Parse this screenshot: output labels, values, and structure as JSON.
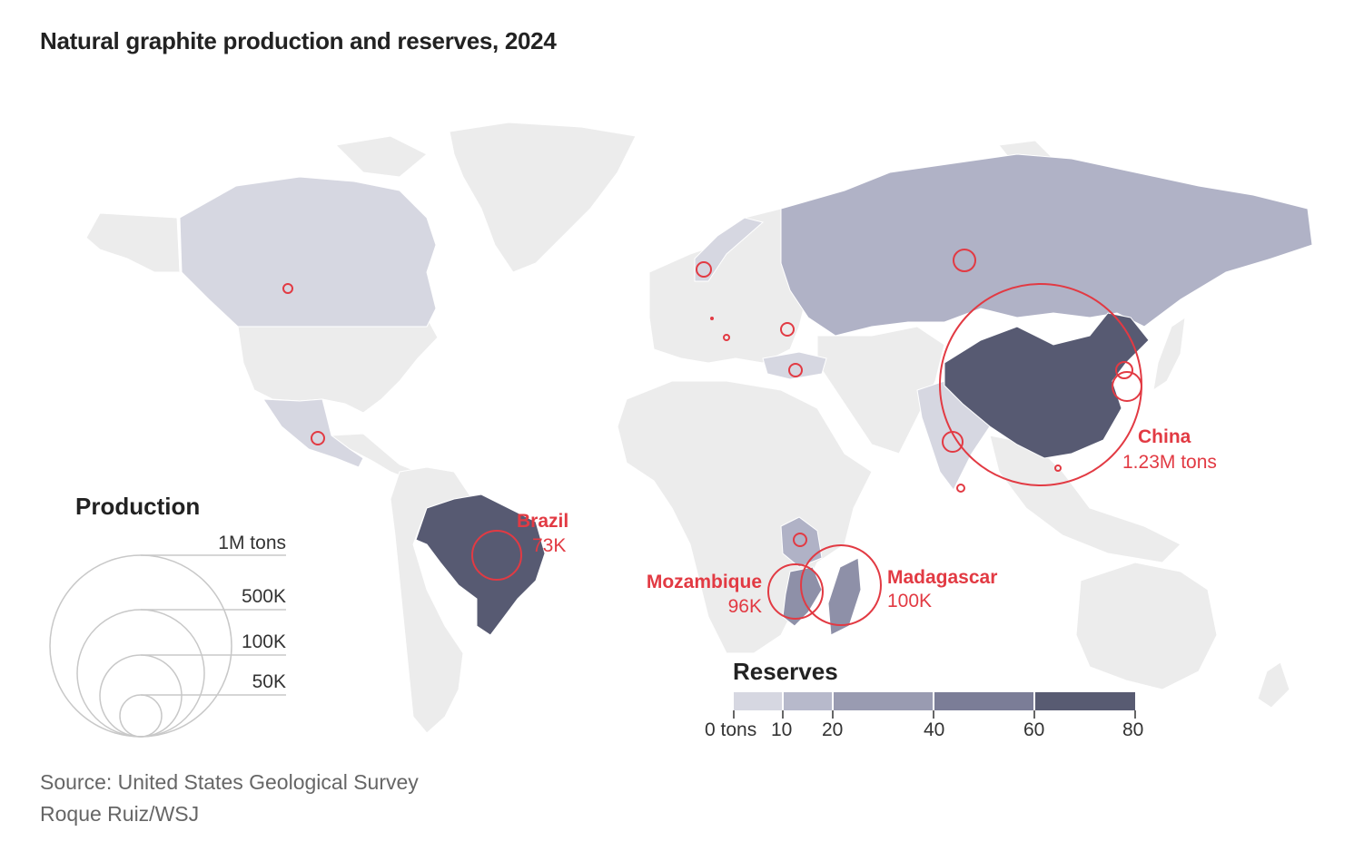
{
  "title": "Natural graphite production and reserves, 2024",
  "colors": {
    "land": "#ececec",
    "reserves_scale": [
      "#d6d7e1",
      "#b7b9cb",
      "#999bb1",
      "#7b7d97",
      "#585b72"
    ],
    "bubble": "#e23a43",
    "circle_legend": "#c8c8c8"
  },
  "production_legend": {
    "title": "Production",
    "labels": [
      "1M tons",
      "500K",
      "100K",
      "50K"
    ]
  },
  "reserves_legend": {
    "title": "Reserves",
    "ticks": [
      "0 tons",
      "10",
      "20",
      "40",
      "60",
      "80"
    ]
  },
  "callouts": {
    "china": {
      "name": "China",
      "value": "1.23M tons"
    },
    "brazil": {
      "name": "Brazil",
      "value": "73K"
    },
    "mozambique": {
      "name": "Mozambique",
      "value": "96K"
    },
    "madagascar": {
      "name": "Madagascar",
      "value": "100K"
    }
  },
  "source": {
    "line1": "Source: United States Geological Survey",
    "line2": "Roque Ruiz/WSJ"
  }
}
